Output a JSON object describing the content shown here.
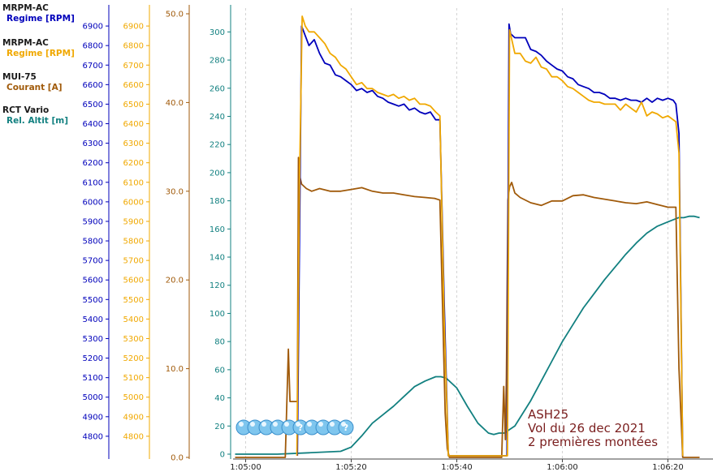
{
  "legend": [
    {
      "device": "MRPM-AC",
      "channel": "Regime [RPM]",
      "color": "#0000bb"
    },
    {
      "device": "MRPM-AC",
      "channel": "Regime [RPM]",
      "color": "#f0a800"
    },
    {
      "device": "MUI-75",
      "channel": "Courant [A]",
      "color": "#a05a0a"
    },
    {
      "device": "RCT Vario",
      "channel": "Rel. Altit [m]",
      "color": "#128080"
    }
  ],
  "annotation": [
    "ASH25",
    "Vol du 26 dec 2021",
    "2 premières montées"
  ],
  "chart_data": {
    "type": "line",
    "grid": true,
    "x_ticks": [
      "1:05:00",
      "1:05:20",
      "1:05:40",
      "1:06:00",
      "1:06:20"
    ],
    "xlim_s": [
      -2,
      86
    ],
    "axes": [
      {
        "name": "Regime [RPM]",
        "color": "#0000bb",
        "ylim": [
          4700,
          7000
        ],
        "ticks": [
          "4800",
          "4900",
          "5000",
          "5100",
          "5200",
          "5300",
          "5400",
          "5500",
          "5600",
          "5700",
          "5800",
          "5900",
          "6000",
          "6100",
          "6200",
          "6300",
          "6400",
          "6500",
          "6600",
          "6700",
          "6800",
          "6900"
        ]
      },
      {
        "name": "Regime [RPM]",
        "color": "#f0a800",
        "ylim": [
          4700,
          7000
        ],
        "ticks": [
          "4800",
          "4900",
          "5000",
          "5100",
          "5200",
          "5300",
          "5400",
          "5500",
          "5600",
          "5700",
          "5800",
          "5900",
          "6000",
          "6100",
          "6200",
          "6300",
          "6400",
          "6500",
          "6600",
          "6700",
          "6800",
          "6900"
        ]
      },
      {
        "name": "Courant [A]",
        "color": "#a05a0a",
        "ylim": [
          0,
          50
        ],
        "ticks": [
          "0.0",
          "10.0",
          "20.0",
          "30.0",
          "40.0",
          "50.0"
        ]
      },
      {
        "name": "Rel. Altit [m]",
        "color": "#128080",
        "ylim": [
          0,
          310
        ],
        "ticks": [
          "0",
          "20",
          "40",
          "60",
          "80",
          "100",
          "120",
          "140",
          "160",
          "180",
          "200",
          "220",
          "240",
          "260",
          "280",
          "300"
        ]
      }
    ],
    "series": [
      {
        "axis": 0,
        "color": "#0000bb",
        "x": [
          9.8,
          10.2,
          10.6,
          11.3,
          12,
          13,
          14,
          15,
          16,
          17,
          18,
          19,
          20,
          21,
          22,
          23,
          24,
          25,
          26,
          27,
          28,
          29,
          30,
          31,
          32,
          33,
          34,
          35,
          36,
          36.8,
          37.6,
          38.4,
          49.5,
          49.9,
          50.2,
          51,
          52,
          53,
          54,
          55,
          56,
          57,
          58,
          59,
          60,
          61,
          62,
          63,
          64,
          65,
          66,
          67,
          68,
          69,
          70,
          71,
          72,
          73,
          74,
          75,
          76,
          77,
          78,
          79,
          80,
          81,
          81.5,
          82.1,
          82.8
        ],
        "values": [
          4700,
          5800,
          6900,
          6850,
          6800,
          6830,
          6760,
          6710,
          6700,
          6650,
          6640,
          6620,
          6600,
          6570,
          6580,
          6560,
          6570,
          6540,
          6530,
          6510,
          6500,
          6490,
          6500,
          6470,
          6480,
          6460,
          6450,
          6460,
          6420,
          6420,
          5500,
          4700,
          4700,
          6910,
          6860,
          6840,
          6840,
          6840,
          6780,
          6770,
          6750,
          6720,
          6700,
          6680,
          6670,
          6640,
          6630,
          6600,
          6590,
          6580,
          6560,
          6560,
          6550,
          6530,
          6530,
          6520,
          6530,
          6520,
          6520,
          6510,
          6530,
          6510,
          6530,
          6520,
          6530,
          6520,
          6500,
          6350,
          4700
        ]
      },
      {
        "axis": 1,
        "color": "#f0a800",
        "x": [
          9.7,
          10.2,
          10.7,
          11.3,
          12,
          13,
          14,
          15,
          16,
          17,
          18,
          19,
          20,
          21,
          22,
          23,
          24,
          25,
          26,
          27,
          28,
          29,
          30,
          31,
          32,
          33,
          34,
          35,
          36,
          36.8,
          37.6,
          38.4,
          49.6,
          50,
          50.5,
          51,
          52,
          53,
          54,
          55,
          56,
          57,
          58,
          59,
          60,
          61,
          62,
          63,
          64,
          65,
          66,
          67,
          68,
          69,
          70,
          71,
          72,
          73,
          74,
          75,
          76,
          77,
          78,
          79,
          80,
          81,
          81.5,
          82.1,
          82.8
        ],
        "values": [
          4700,
          6100,
          6950,
          6900,
          6870,
          6870,
          6840,
          6810,
          6760,
          6740,
          6700,
          6680,
          6640,
          6600,
          6610,
          6580,
          6580,
          6560,
          6550,
          6540,
          6550,
          6530,
          6540,
          6520,
          6530,
          6500,
          6500,
          6490,
          6460,
          6440,
          5400,
          4700,
          4700,
          6880,
          6820,
          6760,
          6760,
          6720,
          6710,
          6740,
          6690,
          6680,
          6640,
          6640,
          6620,
          6590,
          6580,
          6560,
          6540,
          6520,
          6510,
          6510,
          6500,
          6500,
          6500,
          6470,
          6500,
          6480,
          6460,
          6510,
          6440,
          6460,
          6450,
          6430,
          6440,
          6420,
          6410,
          6250,
          4700
        ]
      },
      {
        "axis": 2,
        "color": "#a05a0a",
        "x": [
          -2,
          7.5,
          8.1,
          8.4,
          8.7,
          9.3,
          9.8,
          10,
          10.3,
          10.6,
          11.5,
          12.5,
          14,
          16,
          18,
          20,
          22,
          24,
          26,
          28,
          30,
          32,
          34,
          35.8,
          36.8,
          37.8,
          38.2,
          38.6,
          40,
          48.5,
          48.9,
          49.2,
          49.4,
          49.7,
          50,
          50.4,
          51,
          52,
          54,
          56,
          58,
          60,
          62,
          64,
          66,
          68,
          70,
          72,
          74,
          76,
          78,
          80,
          81.5,
          82.1,
          82.8,
          86
        ],
        "values": [
          0,
          0,
          12.2,
          6.3,
          6.3,
          6.3,
          6.3,
          33.8,
          31.6,
          30.8,
          30.3,
          30.0,
          30.3,
          30.0,
          30.0,
          30.2,
          30.4,
          30.0,
          29.8,
          29.8,
          29.6,
          29.4,
          29.3,
          29.2,
          29.0,
          5.0,
          1.0,
          0,
          0,
          0,
          8.0,
          2.0,
          9.0,
          29.0,
          30.5,
          31.0,
          29.8,
          29.3,
          28.7,
          28.4,
          28.9,
          28.9,
          29.5,
          29.6,
          29.3,
          29.1,
          28.9,
          28.7,
          28.6,
          28.8,
          28.5,
          28.2,
          28.2,
          10.0,
          0,
          0
        ]
      },
      {
        "axis": 3,
        "color": "#128080",
        "x": [
          -2,
          6,
          12,
          18,
          20,
          21,
          22,
          24,
          26,
          28,
          30,
          32,
          34,
          36,
          37,
          38,
          40,
          42,
          44,
          46,
          47,
          48,
          49,
          51,
          52,
          54,
          56,
          58,
          60,
          62,
          64,
          66,
          68,
          70,
          72,
          74,
          76,
          78,
          80,
          82,
          83,
          84,
          85,
          86
        ],
        "values": [
          0,
          0,
          1,
          2,
          5,
          9,
          13,
          22,
          28,
          34,
          41,
          48,
          52,
          55,
          55,
          54,
          47,
          34,
          22,
          15,
          14,
          15,
          15,
          20,
          26,
          38,
          52,
          66,
          80,
          92,
          104,
          114,
          124,
          133,
          142,
          150,
          157,
          162,
          165,
          168,
          168,
          169,
          169,
          168
        ]
      }
    ]
  }
}
